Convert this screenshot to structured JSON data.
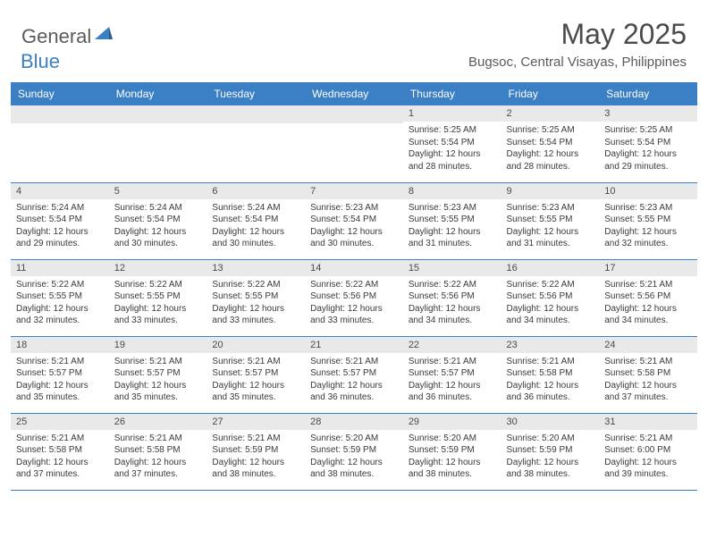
{
  "logo": {
    "text1": "General",
    "text2": "Blue"
  },
  "title": "May 2025",
  "location": "Bugsoc, Central Visayas, Philippines",
  "colors": {
    "header_bg": "#3b7fc4",
    "header_text": "#ffffff",
    "daynum_bg": "#e9e9e9",
    "border": "#3b7fc4",
    "text": "#3a3a3a",
    "logo_gray": "#5a5a5a",
    "logo_blue": "#3b7fc4"
  },
  "weekdays": [
    "Sunday",
    "Monday",
    "Tuesday",
    "Wednesday",
    "Thursday",
    "Friday",
    "Saturday"
  ],
  "weeks": [
    [
      null,
      null,
      null,
      null,
      {
        "n": "1",
        "sr": "Sunrise: 5:25 AM",
        "ss": "Sunset: 5:54 PM",
        "dl1": "Daylight: 12 hours",
        "dl2": "and 28 minutes."
      },
      {
        "n": "2",
        "sr": "Sunrise: 5:25 AM",
        "ss": "Sunset: 5:54 PM",
        "dl1": "Daylight: 12 hours",
        "dl2": "and 28 minutes."
      },
      {
        "n": "3",
        "sr": "Sunrise: 5:25 AM",
        "ss": "Sunset: 5:54 PM",
        "dl1": "Daylight: 12 hours",
        "dl2": "and 29 minutes."
      }
    ],
    [
      {
        "n": "4",
        "sr": "Sunrise: 5:24 AM",
        "ss": "Sunset: 5:54 PM",
        "dl1": "Daylight: 12 hours",
        "dl2": "and 29 minutes."
      },
      {
        "n": "5",
        "sr": "Sunrise: 5:24 AM",
        "ss": "Sunset: 5:54 PM",
        "dl1": "Daylight: 12 hours",
        "dl2": "and 30 minutes."
      },
      {
        "n": "6",
        "sr": "Sunrise: 5:24 AM",
        "ss": "Sunset: 5:54 PM",
        "dl1": "Daylight: 12 hours",
        "dl2": "and 30 minutes."
      },
      {
        "n": "7",
        "sr": "Sunrise: 5:23 AM",
        "ss": "Sunset: 5:54 PM",
        "dl1": "Daylight: 12 hours",
        "dl2": "and 30 minutes."
      },
      {
        "n": "8",
        "sr": "Sunrise: 5:23 AM",
        "ss": "Sunset: 5:55 PM",
        "dl1": "Daylight: 12 hours",
        "dl2": "and 31 minutes."
      },
      {
        "n": "9",
        "sr": "Sunrise: 5:23 AM",
        "ss": "Sunset: 5:55 PM",
        "dl1": "Daylight: 12 hours",
        "dl2": "and 31 minutes."
      },
      {
        "n": "10",
        "sr": "Sunrise: 5:23 AM",
        "ss": "Sunset: 5:55 PM",
        "dl1": "Daylight: 12 hours",
        "dl2": "and 32 minutes."
      }
    ],
    [
      {
        "n": "11",
        "sr": "Sunrise: 5:22 AM",
        "ss": "Sunset: 5:55 PM",
        "dl1": "Daylight: 12 hours",
        "dl2": "and 32 minutes."
      },
      {
        "n": "12",
        "sr": "Sunrise: 5:22 AM",
        "ss": "Sunset: 5:55 PM",
        "dl1": "Daylight: 12 hours",
        "dl2": "and 33 minutes."
      },
      {
        "n": "13",
        "sr": "Sunrise: 5:22 AM",
        "ss": "Sunset: 5:55 PM",
        "dl1": "Daylight: 12 hours",
        "dl2": "and 33 minutes."
      },
      {
        "n": "14",
        "sr": "Sunrise: 5:22 AM",
        "ss": "Sunset: 5:56 PM",
        "dl1": "Daylight: 12 hours",
        "dl2": "and 33 minutes."
      },
      {
        "n": "15",
        "sr": "Sunrise: 5:22 AM",
        "ss": "Sunset: 5:56 PM",
        "dl1": "Daylight: 12 hours",
        "dl2": "and 34 minutes."
      },
      {
        "n": "16",
        "sr": "Sunrise: 5:22 AM",
        "ss": "Sunset: 5:56 PM",
        "dl1": "Daylight: 12 hours",
        "dl2": "and 34 minutes."
      },
      {
        "n": "17",
        "sr": "Sunrise: 5:21 AM",
        "ss": "Sunset: 5:56 PM",
        "dl1": "Daylight: 12 hours",
        "dl2": "and 34 minutes."
      }
    ],
    [
      {
        "n": "18",
        "sr": "Sunrise: 5:21 AM",
        "ss": "Sunset: 5:57 PM",
        "dl1": "Daylight: 12 hours",
        "dl2": "and 35 minutes."
      },
      {
        "n": "19",
        "sr": "Sunrise: 5:21 AM",
        "ss": "Sunset: 5:57 PM",
        "dl1": "Daylight: 12 hours",
        "dl2": "and 35 minutes."
      },
      {
        "n": "20",
        "sr": "Sunrise: 5:21 AM",
        "ss": "Sunset: 5:57 PM",
        "dl1": "Daylight: 12 hours",
        "dl2": "and 35 minutes."
      },
      {
        "n": "21",
        "sr": "Sunrise: 5:21 AM",
        "ss": "Sunset: 5:57 PM",
        "dl1": "Daylight: 12 hours",
        "dl2": "and 36 minutes."
      },
      {
        "n": "22",
        "sr": "Sunrise: 5:21 AM",
        "ss": "Sunset: 5:57 PM",
        "dl1": "Daylight: 12 hours",
        "dl2": "and 36 minutes."
      },
      {
        "n": "23",
        "sr": "Sunrise: 5:21 AM",
        "ss": "Sunset: 5:58 PM",
        "dl1": "Daylight: 12 hours",
        "dl2": "and 36 minutes."
      },
      {
        "n": "24",
        "sr": "Sunrise: 5:21 AM",
        "ss": "Sunset: 5:58 PM",
        "dl1": "Daylight: 12 hours",
        "dl2": "and 37 minutes."
      }
    ],
    [
      {
        "n": "25",
        "sr": "Sunrise: 5:21 AM",
        "ss": "Sunset: 5:58 PM",
        "dl1": "Daylight: 12 hours",
        "dl2": "and 37 minutes."
      },
      {
        "n": "26",
        "sr": "Sunrise: 5:21 AM",
        "ss": "Sunset: 5:58 PM",
        "dl1": "Daylight: 12 hours",
        "dl2": "and 37 minutes."
      },
      {
        "n": "27",
        "sr": "Sunrise: 5:21 AM",
        "ss": "Sunset: 5:59 PM",
        "dl1": "Daylight: 12 hours",
        "dl2": "and 38 minutes."
      },
      {
        "n": "28",
        "sr": "Sunrise: 5:20 AM",
        "ss": "Sunset: 5:59 PM",
        "dl1": "Daylight: 12 hours",
        "dl2": "and 38 minutes."
      },
      {
        "n": "29",
        "sr": "Sunrise: 5:20 AM",
        "ss": "Sunset: 5:59 PM",
        "dl1": "Daylight: 12 hours",
        "dl2": "and 38 minutes."
      },
      {
        "n": "30",
        "sr": "Sunrise: 5:20 AM",
        "ss": "Sunset: 5:59 PM",
        "dl1": "Daylight: 12 hours",
        "dl2": "and 38 minutes."
      },
      {
        "n": "31",
        "sr": "Sunrise: 5:21 AM",
        "ss": "Sunset: 6:00 PM",
        "dl1": "Daylight: 12 hours",
        "dl2": "and 39 minutes."
      }
    ]
  ]
}
